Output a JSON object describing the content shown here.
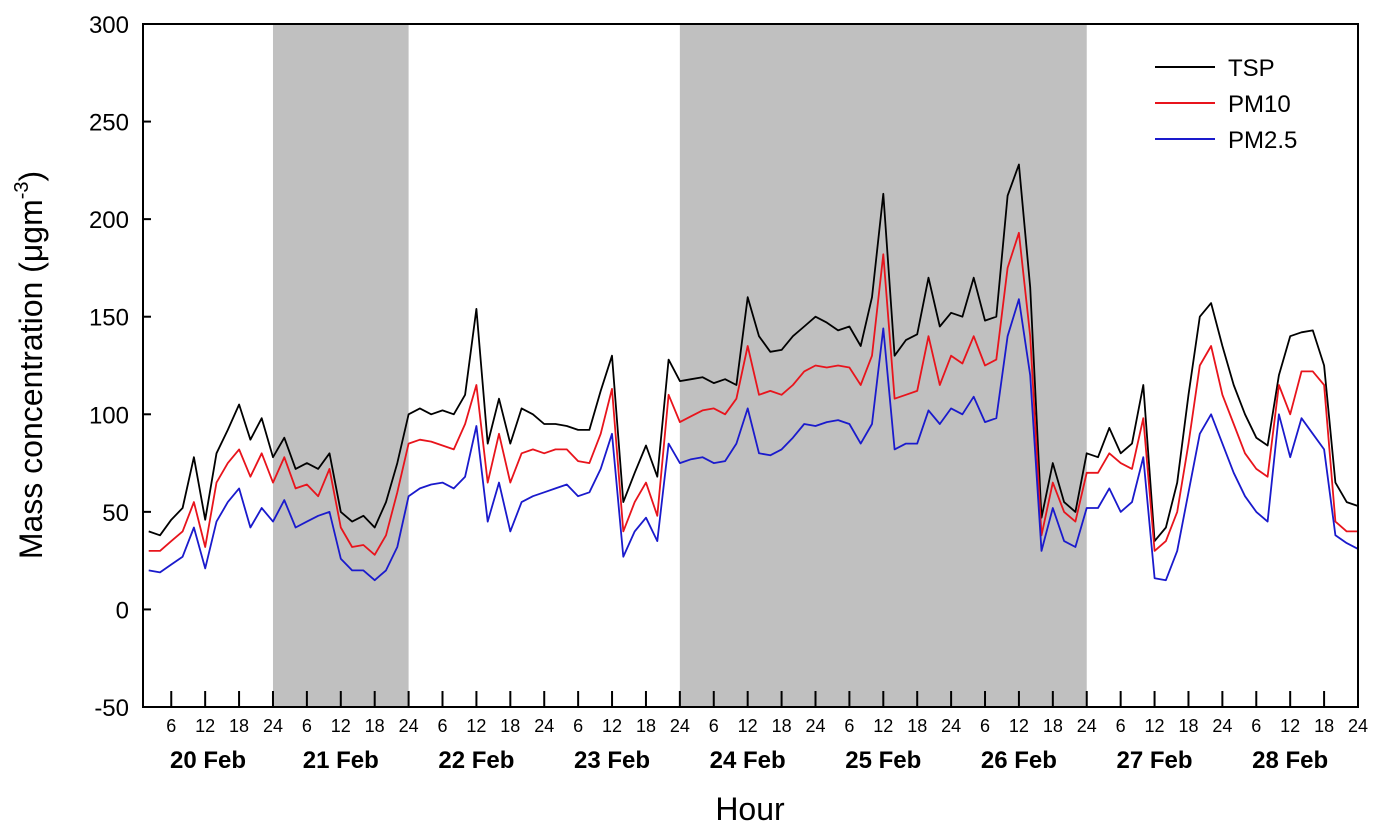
{
  "chart_data": {
    "type": "line",
    "ylabel": [
      "Mass concentration (μgm",
      "-3",
      ")"
    ],
    "xlabel": "Hour",
    "day_labels": [
      "20 Feb",
      "21 Feb",
      "22 Feb",
      "23 Feb",
      "24 Feb",
      "25 Feb",
      "26 Feb",
      "27 Feb",
      "28 Feb"
    ],
    "shaded_spans": [
      [
        24,
        48
      ],
      [
        96,
        168
      ]
    ],
    "shade_color": "#c0c0c0",
    "xlim": [
      1,
      216
    ],
    "ylim": [
      -50,
      300
    ],
    "yticks": [
      -50,
      0,
      50,
      100,
      150,
      200,
      250,
      300
    ],
    "xticks": [
      {
        "value": 6,
        "label": "6"
      },
      {
        "value": 12,
        "label": "12"
      },
      {
        "value": 18,
        "label": "18"
      },
      {
        "value": 24,
        "label": "24"
      },
      {
        "value": 30,
        "label": "6"
      },
      {
        "value": 36,
        "label": "12"
      },
      {
        "value": 42,
        "label": "18"
      },
      {
        "value": 48,
        "label": "24"
      },
      {
        "value": 54,
        "label": "6"
      },
      {
        "value": 60,
        "label": "12"
      },
      {
        "value": 66,
        "label": "18"
      },
      {
        "value": 72,
        "label": "24"
      },
      {
        "value": 78,
        "label": "6"
      },
      {
        "value": 84,
        "label": "12"
      },
      {
        "value": 90,
        "label": "18"
      },
      {
        "value": 96,
        "label": "24"
      },
      {
        "value": 102,
        "label": "6"
      },
      {
        "value": 108,
        "label": "12"
      },
      {
        "value": 114,
        "label": "18"
      },
      {
        "value": 120,
        "label": "24"
      },
      {
        "value": 126,
        "label": "6"
      },
      {
        "value": 132,
        "label": "12"
      },
      {
        "value": 138,
        "label": "18"
      },
      {
        "value": 144,
        "label": "24"
      },
      {
        "value": 150,
        "label": "6"
      },
      {
        "value": 156,
        "label": "12"
      },
      {
        "value": 162,
        "label": "18"
      },
      {
        "value": 168,
        "label": "24"
      },
      {
        "value": 174,
        "label": "6"
      },
      {
        "value": 180,
        "label": "12"
      },
      {
        "value": 186,
        "label": "18"
      },
      {
        "value": 192,
        "label": "24"
      },
      {
        "value": 198,
        "label": "6"
      },
      {
        "value": 204,
        "label": "12"
      },
      {
        "value": 210,
        "label": "18"
      },
      {
        "value": 216,
        "label": "24"
      }
    ],
    "x": [
      2,
      4,
      6,
      8,
      10,
      12,
      14,
      16,
      18,
      20,
      22,
      24,
      26,
      28,
      30,
      32,
      34,
      36,
      38,
      40,
      42,
      44,
      46,
      48,
      50,
      52,
      54,
      56,
      58,
      60,
      62,
      64,
      66,
      68,
      70,
      72,
      74,
      76,
      78,
      80,
      82,
      84,
      86,
      88,
      90,
      92,
      94,
      96,
      98,
      100,
      102,
      104,
      106,
      108,
      110,
      112,
      114,
      116,
      118,
      120,
      122,
      124,
      126,
      128,
      130,
      132,
      134,
      136,
      138,
      140,
      142,
      144,
      146,
      148,
      150,
      152,
      154,
      156,
      158,
      160,
      162,
      164,
      166,
      168,
      170,
      172,
      174,
      176,
      178,
      180,
      182,
      184,
      186,
      188,
      190,
      192,
      194,
      196,
      198,
      200,
      202,
      204,
      206,
      208,
      210,
      212,
      214,
      216
    ],
    "legend": "upper right",
    "series": [
      {
        "name": "TSP",
        "color": "#000000",
        "values": [
          40,
          38,
          46,
          52,
          78,
          46,
          80,
          92,
          105,
          87,
          98,
          78,
          88,
          72,
          75,
          72,
          80,
          50,
          45,
          48,
          42,
          55,
          75,
          100,
          103,
          100,
          102,
          100,
          110,
          154,
          85,
          108,
          85,
          103,
          100,
          95,
          95,
          94,
          92,
          92,
          112,
          130,
          55,
          70,
          84,
          68,
          128,
          117,
          118,
          119,
          116,
          118,
          115,
          160,
          140,
          132,
          133,
          140,
          145,
          150,
          147,
          143,
          145,
          135,
          160,
          213,
          130,
          138,
          141,
          170,
          145,
          152,
          150,
          170,
          148,
          150,
          212,
          228,
          165,
          47,
          75,
          55,
          50,
          80,
          78,
          93,
          80,
          85,
          115,
          35,
          42,
          65,
          110,
          150,
          157,
          135,
          115,
          100,
          88,
          84,
          120,
          140,
          142,
          143,
          125,
          65,
          55,
          53
        ]
      },
      {
        "name": "PM10",
        "color": "#e8141c",
        "values": [
          30,
          30,
          35,
          40,
          55,
          32,
          65,
          75,
          82,
          68,
          80,
          65,
          78,
          62,
          64,
          58,
          72,
          42,
          32,
          33,
          28,
          38,
          60,
          85,
          87,
          86,
          84,
          82,
          95,
          115,
          65,
          90,
          65,
          80,
          82,
          80,
          82,
          82,
          76,
          75,
          90,
          113,
          40,
          55,
          65,
          48,
          110,
          96,
          99,
          102,
          103,
          100,
          108,
          135,
          110,
          112,
          110,
          115,
          122,
          125,
          124,
          125,
          124,
          115,
          130,
          182,
          108,
          110,
          112,
          140,
          115,
          130,
          126,
          140,
          125,
          128,
          175,
          193,
          140,
          38,
          65,
          50,
          45,
          70,
          70,
          80,
          75,
          72,
          98,
          30,
          35,
          50,
          85,
          125,
          135,
          110,
          95,
          80,
          72,
          68,
          115,
          100,
          122,
          122,
          115,
          45,
          40,
          40
        ]
      },
      {
        "name": "PM2.5",
        "color": "#1a1acc",
        "values": [
          20,
          19,
          23,
          27,
          42,
          21,
          45,
          55,
          62,
          42,
          52,
          45,
          56,
          42,
          45,
          48,
          50,
          26,
          20,
          20,
          15,
          20,
          32,
          58,
          62,
          64,
          65,
          62,
          68,
          94,
          45,
          65,
          40,
          55,
          58,
          60,
          62,
          64,
          58,
          60,
          72,
          90,
          27,
          40,
          47,
          35,
          85,
          75,
          77,
          78,
          75,
          76,
          85,
          103,
          80,
          79,
          82,
          88,
          95,
          94,
          96,
          97,
          95,
          85,
          95,
          144,
          82,
          85,
          85,
          102,
          95,
          103,
          100,
          109,
          96,
          98,
          140,
          159,
          120,
          30,
          52,
          35,
          32,
          52,
          52,
          62,
          50,
          55,
          78,
          16,
          15,
          30,
          60,
          90,
          100,
          85,
          70,
          58,
          50,
          45,
          100,
          78,
          98,
          90,
          82,
          38,
          34,
          31
        ]
      }
    ]
  }
}
